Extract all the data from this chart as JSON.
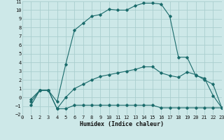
{
  "xlabel": "Humidex (Indice chaleur)",
  "bg_color": "#cde8e8",
  "grid_color": "#aacece",
  "line_color": "#1a6b6b",
  "xlim": [
    0,
    23
  ],
  "ylim": [
    -2,
    11
  ],
  "line1_x": [
    1,
    2,
    3,
    4,
    5,
    6,
    7,
    8,
    9,
    10,
    11,
    12,
    13,
    14,
    15,
    16,
    17,
    18,
    19,
    20,
    21,
    22,
    23
  ],
  "line1_y": [
    -0.2,
    0.8,
    0.8,
    -0.5,
    3.8,
    7.7,
    8.5,
    9.3,
    9.5,
    10.1,
    10.0,
    10.0,
    10.5,
    10.8,
    10.8,
    10.7,
    9.3,
    4.6,
    4.6,
    2.5,
    2.2,
    0.2,
    -1.2
  ],
  "line2_x": [
    1,
    2,
    3,
    4,
    5,
    6,
    7,
    8,
    9,
    10,
    11,
    12,
    13,
    14,
    15,
    16,
    17,
    18,
    19,
    20,
    21,
    22,
    23
  ],
  "line2_y": [
    -0.9,
    0.8,
    0.8,
    -1.3,
    -1.3,
    -0.9,
    -0.9,
    -0.9,
    -0.9,
    -0.9,
    -0.9,
    -0.9,
    -0.9,
    -0.9,
    -0.9,
    -1.2,
    -1.2,
    -1.2,
    -1.2,
    -1.2,
    -1.2,
    -1.2,
    -1.2
  ],
  "line3_x": [
    1,
    2,
    3,
    4,
    5,
    6,
    7,
    8,
    9,
    10,
    11,
    12,
    13,
    14,
    15,
    16,
    17,
    18,
    19,
    20,
    21,
    22,
    23
  ],
  "line3_y": [
    -0.5,
    0.8,
    0.8,
    -1.3,
    0.0,
    1.0,
    1.5,
    2.0,
    2.4,
    2.6,
    2.8,
    3.0,
    3.2,
    3.5,
    3.5,
    2.8,
    2.5,
    2.3,
    2.9,
    2.6,
    2.0,
    1.5,
    -1.2
  ]
}
